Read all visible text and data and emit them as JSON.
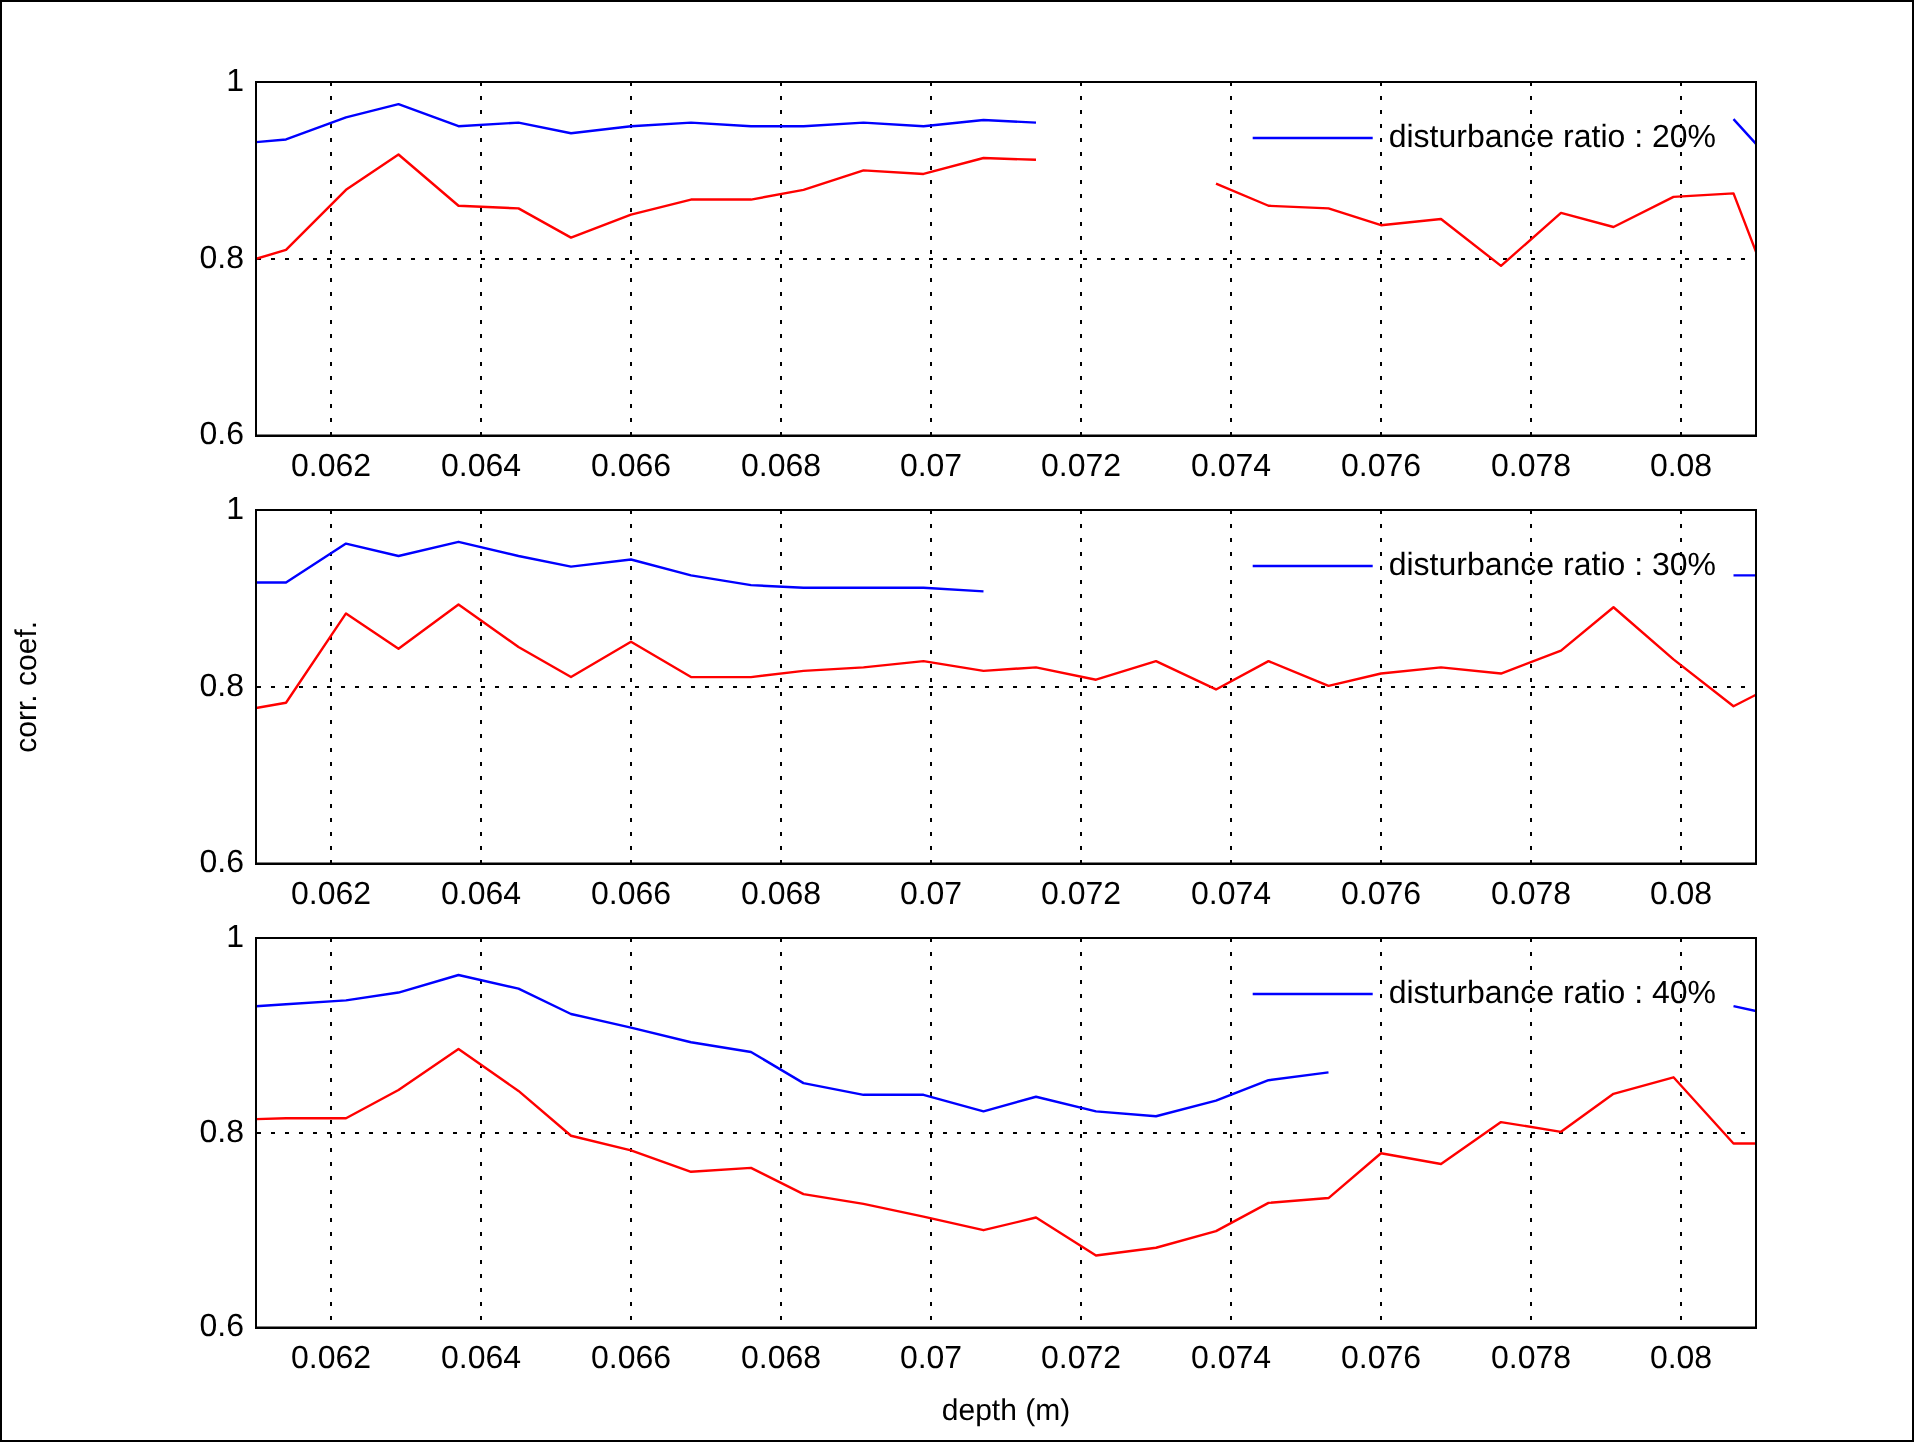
{
  "chart_data": [
    {
      "type": "line",
      "x": [
        0.061,
        0.0614,
        0.0622,
        0.0629,
        0.0637,
        0.0645,
        0.0652,
        0.066,
        0.0668,
        0.0676,
        0.0683,
        0.0691,
        0.0699,
        0.0707,
        0.0714,
        0.0722,
        0.073,
        0.0738,
        0.0745,
        0.0753,
        0.076,
        0.0768,
        0.0776,
        0.0784,
        0.0791,
        0.0799,
        0.0807,
        0.081
      ],
      "series": [
        {
          "name": "disturbance ratio : 20%",
          "color": "#0000ff",
          "values": [
            0.932,
            0.935,
            0.96,
            0.975,
            0.95,
            0.954,
            0.942,
            0.95,
            0.954,
            0.95,
            0.95,
            0.954,
            0.95,
            0.957,
            0.954,
            null,
            null,
            null,
            null,
            null,
            null,
            null,
            null,
            null,
            null,
            null,
            0.958,
            0.93
          ]
        },
        {
          "color": "#ff0000",
          "values": [
            0.8,
            0.81,
            0.878,
            0.918,
            0.86,
            0.857,
            0.824,
            0.85,
            0.867,
            0.867,
            0.878,
            0.9,
            0.896,
            0.914,
            0.912,
            null,
            null,
            0.885,
            0.86,
            0.857,
            0.838,
            0.845,
            0.792,
            0.852,
            0.836,
            0.87,
            0.874,
            0.808
          ]
        }
      ],
      "xlim": [
        0.061,
        0.081
      ],
      "ylim": [
        0.6,
        1
      ],
      "xticks": [
        0.062,
        0.064,
        0.066,
        0.068,
        0.07,
        0.072,
        0.074,
        0.076,
        0.078,
        0.08
      ],
      "yticks": [
        0.6,
        0.8,
        1
      ],
      "grid": true,
      "legend": "top right",
      "marker": "none"
    },
    {
      "type": "line",
      "x": [
        0.061,
        0.0614,
        0.0622,
        0.0629,
        0.0637,
        0.0645,
        0.0652,
        0.066,
        0.0668,
        0.0676,
        0.0683,
        0.0691,
        0.0699,
        0.0707,
        0.0714,
        0.0722,
        0.073,
        0.0738,
        0.0745,
        0.0753,
        0.076,
        0.0768,
        0.0776,
        0.0784,
        0.0791,
        0.0799,
        0.0807,
        0.081
      ],
      "ylabel": "corr. coef.",
      "series": [
        {
          "name": "disturbance ratio : 30%",
          "color": "#0000ff",
          "values": [
            0.918,
            0.918,
            0.962,
            0.948,
            0.964,
            0.948,
            0.936,
            0.944,
            0.926,
            0.915,
            0.912,
            0.912,
            0.912,
            0.908,
            null,
            null,
            null,
            null,
            null,
            null,
            null,
            null,
            null,
            null,
            null,
            null,
            0.926,
            0.926
          ]
        },
        {
          "color": "#ff0000",
          "values": [
            0.776,
            0.782,
            0.883,
            0.843,
            0.893,
            0.845,
            0.811,
            0.851,
            0.811,
            0.811,
            0.818,
            0.822,
            0.829,
            0.818,
            0.822,
            0.808,
            0.829,
            0.797,
            0.829,
            0.801,
            0.815,
            0.822,
            0.815,
            0.841,
            0.89,
            0.831,
            0.778,
            0.791
          ]
        }
      ],
      "xlim": [
        0.061,
        0.081
      ],
      "ylim": [
        0.6,
        1
      ],
      "xticks": [
        0.062,
        0.064,
        0.066,
        0.068,
        0.07,
        0.072,
        0.074,
        0.076,
        0.078,
        0.08
      ],
      "yticks": [
        0.6,
        0.8,
        1
      ],
      "grid": true,
      "legend": "top right",
      "marker": "none"
    },
    {
      "type": "line",
      "x": [
        0.061,
        0.0614,
        0.0622,
        0.0629,
        0.0637,
        0.0645,
        0.0652,
        0.066,
        0.0668,
        0.0676,
        0.0683,
        0.0691,
        0.0699,
        0.0707,
        0.0714,
        0.0722,
        0.073,
        0.0738,
        0.0745,
        0.0753,
        0.076,
        0.0768,
        0.0776,
        0.0784,
        0.0791,
        0.0799,
        0.0807,
        0.081
      ],
      "xlabel": "depth (m)",
      "series": [
        {
          "name": "disturbance ratio : 40%",
          "color": "#0000ff",
          "values": [
            0.93,
            0.932,
            0.936,
            0.944,
            0.962,
            0.948,
            0.922,
            0.908,
            0.893,
            0.883,
            0.851,
            0.839,
            0.839,
            0.822,
            0.837,
            0.822,
            0.817,
            0.833,
            0.854,
            0.862,
            null,
            null,
            null,
            null,
            null,
            null,
            0.93,
            0.925
          ]
        },
        {
          "color": "#ff0000",
          "values": [
            0.814,
            0.815,
            0.815,
            0.844,
            0.886,
            0.843,
            0.797,
            0.782,
            0.76,
            0.764,
            0.737,
            0.727,
            0.714,
            0.7,
            0.713,
            0.674,
            0.682,
            0.699,
            0.728,
            0.733,
            0.779,
            0.768,
            0.811,
            0.801,
            0.84,
            0.857,
            0.789,
            0.789
          ]
        }
      ],
      "xlim": [
        0.061,
        0.081
      ],
      "ylim": [
        0.6,
        1
      ],
      "xticks": [
        0.062,
        0.064,
        0.066,
        0.068,
        0.07,
        0.072,
        0.074,
        0.076,
        0.078,
        0.08
      ],
      "yticks": [
        0.6,
        0.8,
        1
      ],
      "grid": true,
      "legend": "top right",
      "marker": "none"
    }
  ]
}
